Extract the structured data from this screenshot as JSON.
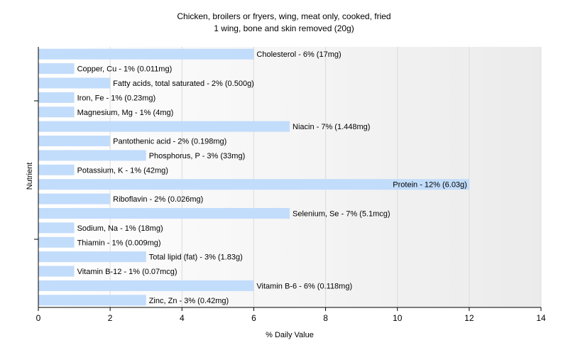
{
  "chart_data": {
    "type": "bar",
    "orientation": "horizontal",
    "title": "Chicken, broilers or fryers, wing, meat only, cooked, fried",
    "subtitle": "1 wing, bone and skin removed (20g)",
    "xlabel": "% Daily Value",
    "ylabel": "Nutrient",
    "xlim": [
      0,
      14
    ],
    "xticks": [
      0,
      2,
      4,
      6,
      8,
      10,
      12,
      14
    ],
    "grid": true,
    "bar_color": "#c2dcfb",
    "categories": [
      "Cholesterol",
      "Copper, Cu",
      "Fatty acids, total saturated",
      "Iron, Fe",
      "Magnesium, Mg",
      "Niacin",
      "Pantothenic acid",
      "Phosphorus, P",
      "Potassium, K",
      "Protein",
      "Riboflavin",
      "Selenium, Se",
      "Sodium, Na",
      "Thiamin",
      "Total lipid (fat)",
      "Vitamin B-12",
      "Vitamin B-6",
      "Zinc, Zn"
    ],
    "values": [
      6,
      1,
      2,
      1,
      1,
      7,
      2,
      3,
      1,
      12,
      2,
      7,
      1,
      1,
      3,
      1,
      6,
      3
    ],
    "data_labels": [
      "Cholesterol - 6% (17mg)",
      "Copper, Cu - 1% (0.011mg)",
      "Fatty acids, total saturated - 2% (0.500g)",
      "Iron, Fe - 1% (0.23mg)",
      "Magnesium, Mg - 1% (4mg)",
      "Niacin - 7% (1.448mg)",
      "Pantothenic acid - 2% (0.198mg)",
      "Phosphorus, P - 3% (33mg)",
      "Potassium, K - 1% (42mg)",
      "Protein - 12% (6.03g)",
      "Riboflavin - 2% (0.026mg)",
      "Selenium, Se - 7% (5.1mcg)",
      "Sodium, Na - 1% (18mg)",
      "Thiamin - 1% (0.009mg)",
      "Total lipid (fat) - 3% (1.83g)",
      "Vitamin B-12 - 1% (0.07mcg)",
      "Vitamin B-6 - 6% (0.118mg)",
      "Zinc, Zn - 3% (0.42mg)"
    ]
  }
}
